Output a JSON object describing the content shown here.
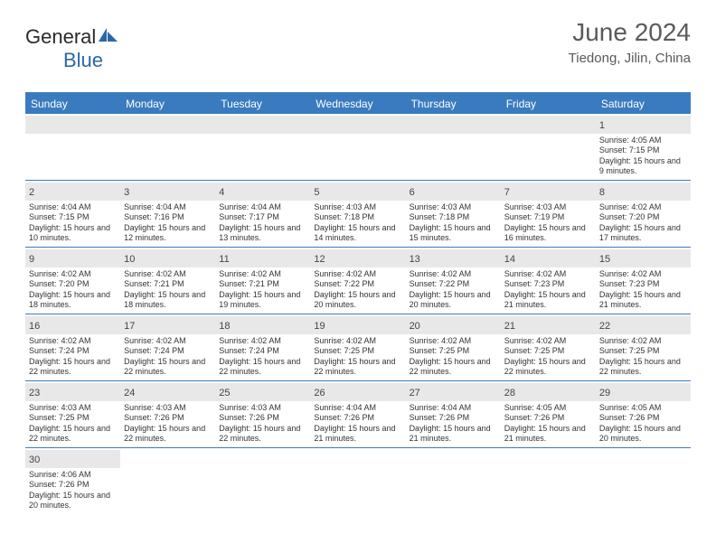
{
  "logo": {
    "part1": "General",
    "part2": "Blue"
  },
  "title": "June 2024",
  "location": "Tiedong, Jilin, China",
  "colors": {
    "header_bg": "#3a7bbf",
    "header_text": "#ffffff",
    "daynum_bg": "#e8e8e8",
    "text": "#333333",
    "title_color": "#5a5a5a"
  },
  "weekdays": [
    "Sunday",
    "Monday",
    "Tuesday",
    "Wednesday",
    "Thursday",
    "Friday",
    "Saturday"
  ],
  "weeks": [
    [
      null,
      null,
      null,
      null,
      null,
      null,
      {
        "n": "1",
        "sunrise": "4:05 AM",
        "sunset": "7:15 PM",
        "daylight": "15 hours and 9 minutes."
      }
    ],
    [
      {
        "n": "2",
        "sunrise": "4:04 AM",
        "sunset": "7:15 PM",
        "daylight": "15 hours and 10 minutes."
      },
      {
        "n": "3",
        "sunrise": "4:04 AM",
        "sunset": "7:16 PM",
        "daylight": "15 hours and 12 minutes."
      },
      {
        "n": "4",
        "sunrise": "4:04 AM",
        "sunset": "7:17 PM",
        "daylight": "15 hours and 13 minutes."
      },
      {
        "n": "5",
        "sunrise": "4:03 AM",
        "sunset": "7:18 PM",
        "daylight": "15 hours and 14 minutes."
      },
      {
        "n": "6",
        "sunrise": "4:03 AM",
        "sunset": "7:18 PM",
        "daylight": "15 hours and 15 minutes."
      },
      {
        "n": "7",
        "sunrise": "4:03 AM",
        "sunset": "7:19 PM",
        "daylight": "15 hours and 16 minutes."
      },
      {
        "n": "8",
        "sunrise": "4:02 AM",
        "sunset": "7:20 PM",
        "daylight": "15 hours and 17 minutes."
      }
    ],
    [
      {
        "n": "9",
        "sunrise": "4:02 AM",
        "sunset": "7:20 PM",
        "daylight": "15 hours and 18 minutes."
      },
      {
        "n": "10",
        "sunrise": "4:02 AM",
        "sunset": "7:21 PM",
        "daylight": "15 hours and 18 minutes."
      },
      {
        "n": "11",
        "sunrise": "4:02 AM",
        "sunset": "7:21 PM",
        "daylight": "15 hours and 19 minutes."
      },
      {
        "n": "12",
        "sunrise": "4:02 AM",
        "sunset": "7:22 PM",
        "daylight": "15 hours and 20 minutes."
      },
      {
        "n": "13",
        "sunrise": "4:02 AM",
        "sunset": "7:22 PM",
        "daylight": "15 hours and 20 minutes."
      },
      {
        "n": "14",
        "sunrise": "4:02 AM",
        "sunset": "7:23 PM",
        "daylight": "15 hours and 21 minutes."
      },
      {
        "n": "15",
        "sunrise": "4:02 AM",
        "sunset": "7:23 PM",
        "daylight": "15 hours and 21 minutes."
      }
    ],
    [
      {
        "n": "16",
        "sunrise": "4:02 AM",
        "sunset": "7:24 PM",
        "daylight": "15 hours and 22 minutes."
      },
      {
        "n": "17",
        "sunrise": "4:02 AM",
        "sunset": "7:24 PM",
        "daylight": "15 hours and 22 minutes."
      },
      {
        "n": "18",
        "sunrise": "4:02 AM",
        "sunset": "7:24 PM",
        "daylight": "15 hours and 22 minutes."
      },
      {
        "n": "19",
        "sunrise": "4:02 AM",
        "sunset": "7:25 PM",
        "daylight": "15 hours and 22 minutes."
      },
      {
        "n": "20",
        "sunrise": "4:02 AM",
        "sunset": "7:25 PM",
        "daylight": "15 hours and 22 minutes."
      },
      {
        "n": "21",
        "sunrise": "4:02 AM",
        "sunset": "7:25 PM",
        "daylight": "15 hours and 22 minutes."
      },
      {
        "n": "22",
        "sunrise": "4:02 AM",
        "sunset": "7:25 PM",
        "daylight": "15 hours and 22 minutes."
      }
    ],
    [
      {
        "n": "23",
        "sunrise": "4:03 AM",
        "sunset": "7:25 PM",
        "daylight": "15 hours and 22 minutes."
      },
      {
        "n": "24",
        "sunrise": "4:03 AM",
        "sunset": "7:26 PM",
        "daylight": "15 hours and 22 minutes."
      },
      {
        "n": "25",
        "sunrise": "4:03 AM",
        "sunset": "7:26 PM",
        "daylight": "15 hours and 22 minutes."
      },
      {
        "n": "26",
        "sunrise": "4:04 AM",
        "sunset": "7:26 PM",
        "daylight": "15 hours and 21 minutes."
      },
      {
        "n": "27",
        "sunrise": "4:04 AM",
        "sunset": "7:26 PM",
        "daylight": "15 hours and 21 minutes."
      },
      {
        "n": "28",
        "sunrise": "4:05 AM",
        "sunset": "7:26 PM",
        "daylight": "15 hours and 21 minutes."
      },
      {
        "n": "29",
        "sunrise": "4:05 AM",
        "sunset": "7:26 PM",
        "daylight": "15 hours and 20 minutes."
      }
    ],
    [
      {
        "n": "30",
        "sunrise": "4:06 AM",
        "sunset": "7:26 PM",
        "daylight": "15 hours and 20 minutes."
      },
      null,
      null,
      null,
      null,
      null,
      null
    ]
  ],
  "labels": {
    "sunrise": "Sunrise: ",
    "sunset": "Sunset: ",
    "daylight": "Daylight: "
  }
}
